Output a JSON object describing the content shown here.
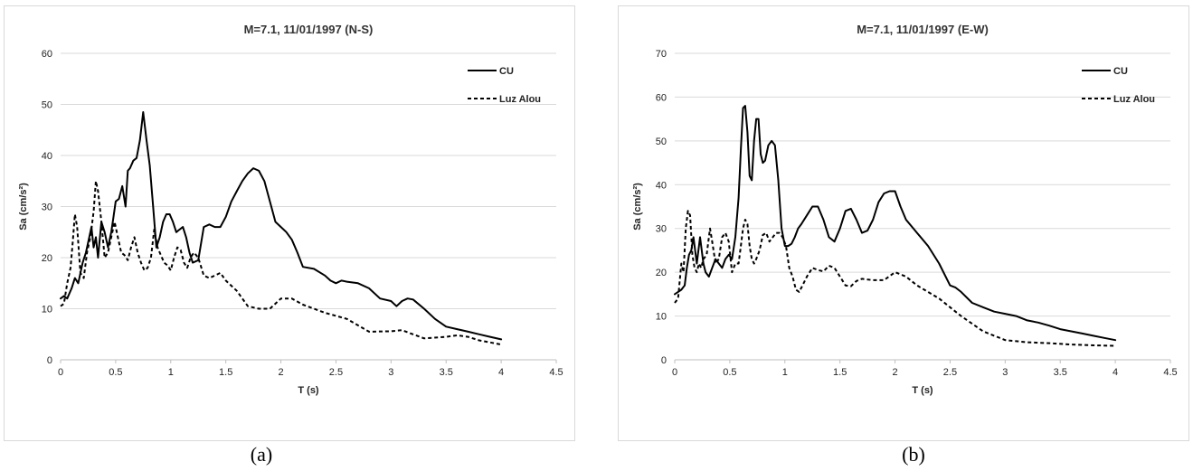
{
  "chart_data": [
    {
      "type": "line",
      "title": "M=7.1, 11/01/1997 (N-S)",
      "xlabel": "T (s)",
      "ylabel": "Sa (cm/s²)",
      "xlim": [
        0,
        4.5
      ],
      "ylim": [
        0,
        60
      ],
      "xticks": [
        "0",
        "0.5",
        "1",
        "1.5",
        "2",
        "2.5",
        "3",
        "3.5",
        "4",
        "4.5"
      ],
      "yticks": [
        "0",
        "10",
        "20",
        "30",
        "40",
        "50",
        "60"
      ],
      "grid": "horizontal",
      "legend": "top-right",
      "caption": "(a)",
      "series": [
        {
          "name": "CU",
          "style": "solid",
          "x": [
            0,
            0.03,
            0.06,
            0.1,
            0.13,
            0.16,
            0.2,
            0.23,
            0.26,
            0.28,
            0.3,
            0.32,
            0.34,
            0.37,
            0.4,
            0.43,
            0.46,
            0.48,
            0.5,
            0.53,
            0.56,
            0.59,
            0.61,
            0.63,
            0.66,
            0.69,
            0.72,
            0.75,
            0.78,
            0.81,
            0.84,
            0.87,
            0.9,
            0.93,
            0.96,
            0.99,
            1.02,
            1.05,
            1.08,
            1.11,
            1.14,
            1.17,
            1.2,
            1.25,
            1.3,
            1.35,
            1.4,
            1.45,
            1.5,
            1.55,
            1.6,
            1.65,
            1.7,
            1.75,
            1.8,
            1.85,
            1.9,
            1.95,
            2.0,
            2.05,
            2.1,
            2.15,
            2.2,
            2.3,
            2.4,
            2.45,
            2.5,
            2.55,
            2.6,
            2.7,
            2.8,
            2.9,
            3.0,
            3.05,
            3.1,
            3.15,
            3.2,
            3.3,
            3.4,
            3.5,
            3.6,
            3.7,
            3.8,
            3.9,
            4.0
          ],
          "y": [
            12,
            12.5,
            12,
            14,
            16,
            15,
            19,
            21,
            24,
            26,
            22,
            24,
            20,
            27,
            25,
            22,
            25,
            28,
            31,
            31.5,
            34,
            30,
            37,
            37.5,
            39,
            39.5,
            43,
            48.5,
            43,
            38,
            30,
            22,
            24,
            27,
            28.5,
            28.5,
            27,
            25,
            25.5,
            26,
            24,
            21,
            19,
            19.5,
            26,
            26.5,
            26,
            26,
            28,
            31,
            33,
            35,
            36.5,
            37.5,
            37,
            35,
            31,
            27,
            26,
            25,
            23.5,
            21,
            18.2,
            17.8,
            16.5,
            15.5,
            15,
            15.5,
            15.3,
            15,
            14,
            12,
            11.5,
            10.5,
            11.5,
            12,
            11.8,
            10,
            8,
            6.5,
            6,
            5.5,
            5,
            4.5,
            4
          ]
        },
        {
          "name": "Luz Alou",
          "style": "dashed",
          "x": [
            0,
            0.03,
            0.06,
            0.09,
            0.11,
            0.13,
            0.15,
            0.18,
            0.21,
            0.24,
            0.27,
            0.3,
            0.32,
            0.34,
            0.37,
            0.4,
            0.43,
            0.46,
            0.49,
            0.52,
            0.55,
            0.58,
            0.61,
            0.64,
            0.67,
            0.7,
            0.73,
            0.76,
            0.79,
            0.82,
            0.85,
            0.88,
            0.91,
            0.94,
            0.97,
            1.0,
            1.03,
            1.06,
            1.09,
            1.12,
            1.15,
            1.18,
            1.21,
            1.25,
            1.3,
            1.35,
            1.4,
            1.45,
            1.5,
            1.55,
            1.6,
            1.7,
            1.8,
            1.9,
            2.0,
            2.1,
            2.2,
            2.4,
            2.6,
            2.8,
            3.0,
            3.1,
            3.2,
            3.3,
            3.5,
            3.6,
            3.7,
            3.8,
            4.0
          ],
          "y": [
            10.5,
            11,
            15,
            18,
            23,
            28.5,
            26,
            17,
            16,
            21,
            24,
            29,
            35,
            33,
            27,
            20,
            21,
            24,
            27,
            24,
            21,
            20.5,
            19.5,
            22,
            24,
            21,
            19,
            17.5,
            18,
            20,
            25.5,
            22,
            20.5,
            19,
            18.5,
            17.5,
            20,
            22,
            21.5,
            19,
            18,
            20,
            21,
            20,
            16.5,
            16,
            16.5,
            17,
            15.5,
            14.5,
            13.5,
            10.5,
            10,
            10,
            12,
            12,
            10.8,
            9.2,
            8,
            5.5,
            5.6,
            5.8,
            5,
            4.2,
            4.5,
            4.8,
            4.5,
            3.8,
            3
          ]
        }
      ]
    },
    {
      "type": "line",
      "title": "M=7.1, 11/01/1997 (E-W)",
      "xlabel": "T (s)",
      "ylabel": "Sa (cm/s²)",
      "xlim": [
        0,
        4.5
      ],
      "ylim": [
        0,
        70
      ],
      "xticks": [
        "0",
        "0.5",
        "1",
        "1.5",
        "2",
        "2.5",
        "3",
        "3.5",
        "4",
        "4.5"
      ],
      "yticks": [
        "0",
        "10",
        "20",
        "30",
        "40",
        "50",
        "60",
        "70"
      ],
      "grid": "horizontal",
      "legend": "top-right",
      "caption": "(b)",
      "series": [
        {
          "name": "CU",
          "style": "solid",
          "x": [
            0,
            0.03,
            0.06,
            0.09,
            0.11,
            0.13,
            0.15,
            0.17,
            0.2,
            0.23,
            0.26,
            0.28,
            0.31,
            0.34,
            0.37,
            0.4,
            0.43,
            0.46,
            0.49,
            0.52,
            0.55,
            0.58,
            0.6,
            0.62,
            0.64,
            0.66,
            0.68,
            0.7,
            0.72,
            0.74,
            0.76,
            0.78,
            0.8,
            0.82,
            0.85,
            0.88,
            0.91,
            0.94,
            0.97,
            1.0,
            1.03,
            1.06,
            1.09,
            1.12,
            1.15,
            1.2,
            1.25,
            1.3,
            1.35,
            1.4,
            1.45,
            1.5,
            1.55,
            1.6,
            1.65,
            1.7,
            1.75,
            1.8,
            1.85,
            1.9,
            1.95,
            2.0,
            2.05,
            2.1,
            2.2,
            2.3,
            2.4,
            2.5,
            2.55,
            2.6,
            2.7,
            2.8,
            2.9,
            3.0,
            3.1,
            3.2,
            3.3,
            3.4,
            3.5,
            3.6,
            3.7,
            3.8,
            3.9,
            4.0
          ],
          "y": [
            15,
            15.5,
            16,
            17,
            21,
            24,
            25,
            28,
            22,
            28,
            22,
            20,
            19,
            21,
            23,
            22,
            21,
            23,
            24,
            23,
            28,
            37,
            48,
            57.5,
            58,
            52,
            42,
            41,
            50,
            55,
            55,
            47,
            45,
            45.5,
            49,
            50,
            49,
            41,
            30,
            26,
            26,
            26.5,
            28,
            30,
            31,
            33,
            35,
            35,
            32,
            28,
            27,
            30,
            34,
            34.5,
            32,
            29,
            29.5,
            32,
            36,
            38,
            38.5,
            38.5,
            35,
            32,
            29,
            26,
            22,
            17,
            16.5,
            15.5,
            13,
            12,
            11,
            10.5,
            10,
            9,
            8.5,
            7.8,
            7,
            6.5,
            6,
            5.5,
            5,
            4.5
          ]
        },
        {
          "name": "Luz Alou",
          "style": "dashed",
          "x": [
            0,
            0.03,
            0.06,
            0.08,
            0.1,
            0.12,
            0.14,
            0.16,
            0.18,
            0.2,
            0.22,
            0.24,
            0.26,
            0.29,
            0.32,
            0.34,
            0.37,
            0.4,
            0.43,
            0.46,
            0.49,
            0.52,
            0.55,
            0.58,
            0.6,
            0.62,
            0.64,
            0.66,
            0.68,
            0.7,
            0.72,
            0.74,
            0.77,
            0.8,
            0.83,
            0.86,
            0.89,
            0.92,
            0.95,
            0.98,
            1.01,
            1.04,
            1.07,
            1.1,
            1.13,
            1.16,
            1.2,
            1.25,
            1.3,
            1.35,
            1.4,
            1.45,
            1.5,
            1.55,
            1.6,
            1.65,
            1.7,
            1.8,
            1.9,
            2.0,
            2.1,
            2.2,
            2.4,
            2.6,
            2.8,
            3.0,
            3.2,
            3.4,
            3.6,
            3.8,
            4.0
          ],
          "y": [
            13,
            14,
            22,
            20,
            30,
            34,
            33,
            24,
            21,
            20,
            22,
            21,
            23,
            24,
            30,
            27,
            22,
            23,
            28,
            29,
            27,
            20,
            22,
            22,
            26,
            30,
            32,
            31,
            26,
            23,
            22,
            23,
            25,
            28.5,
            29,
            27,
            28,
            29,
            29,
            28,
            26,
            21,
            19,
            16,
            15.5,
            17,
            19,
            21,
            20.5,
            20.2,
            21.5,
            21,
            19,
            17,
            16.8,
            18,
            18.5,
            18.2,
            18.2,
            20,
            19,
            17,
            14,
            10,
            6.5,
            4.5,
            4,
            3.8,
            3.5,
            3.3,
            3.2
          ]
        }
      ]
    }
  ]
}
